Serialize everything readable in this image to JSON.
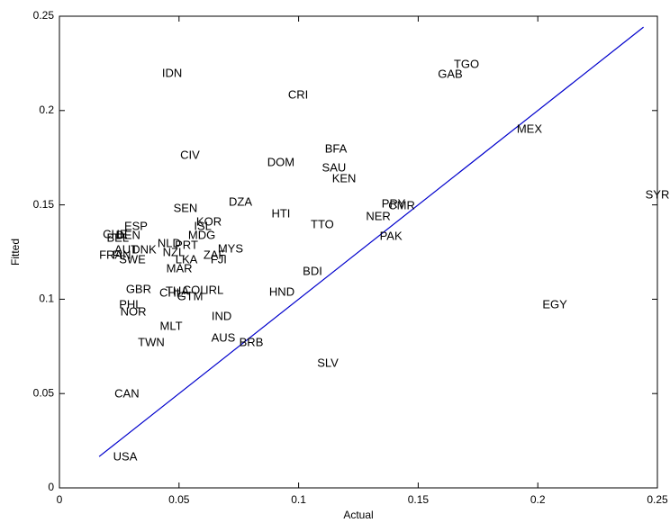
{
  "chart_data": {
    "type": "scatter",
    "x_label": "Actual",
    "y_label": "Fitted",
    "xlim": [
      0,
      0.25
    ],
    "ylim": [
      0,
      0.25
    ],
    "xticks": [
      0,
      0.05,
      0.1,
      0.15,
      0.2,
      0.25
    ],
    "yticks": [
      0,
      0.05,
      0.1,
      0.15,
      0.2,
      0.25
    ],
    "labels": [
      "IDN",
      "TGO",
      "GAB",
      "CRI",
      "MEX",
      "BFA",
      "CIV",
      "DOM",
      "SAU",
      "KEN",
      "SYR",
      "DZA",
      "SEN",
      "HTI",
      "PRY",
      "CMR",
      "NER",
      "TTO",
      "KOR",
      "ESP",
      "ISL",
      "CHE",
      "DEN",
      "BEL",
      "MDG",
      "PAK",
      "NLD",
      "PRT",
      "MYS",
      "AUT",
      "DNK",
      "FRA",
      "FIN",
      "NZL",
      "ZAF",
      "FJI",
      "LKA",
      "SWE",
      "MAR",
      "BDI",
      "GBR",
      "THA",
      "CHL",
      "COL",
      "IRL",
      "GTM",
      "HND",
      "EGY",
      "PHL",
      "NOR",
      "IND",
      "MLT",
      "AUS",
      "BRB",
      "TWN",
      "SLV",
      "CAN",
      "USA"
    ],
    "x": [
      0.0471,
      0.1702,
      0.1634,
      0.0998,
      0.1965,
      0.1156,
      0.0546,
      0.0926,
      0.1148,
      0.119,
      0.25,
      0.0757,
      0.0527,
      0.0926,
      0.1397,
      0.1431,
      0.1333,
      0.1099,
      0.0625,
      0.032,
      0.0599,
      0.0233,
      0.0287,
      0.0244,
      0.0595,
      0.1386,
      0.0459,
      0.0531,
      0.0715,
      0.0279,
      0.0354,
      0.0215,
      0.026,
      0.0478,
      0.0648,
      0.0666,
      0.0531,
      0.0305,
      0.0501,
      0.1058,
      0.0331,
      0.0493,
      0.0467,
      0.0565,
      0.0648,
      0.0546,
      0.093,
      0.2071,
      0.0297,
      0.0309,
      0.0678,
      0.0467,
      0.0685,
      0.0802,
      0.0384,
      0.1122,
      0.0282,
      0.0275
    ],
    "values": [
      0.2195,
      0.2242,
      0.219,
      0.208,
      0.1899,
      0.1794,
      0.176,
      0.1722,
      0.1694,
      0.1636,
      0.1551,
      0.1512,
      0.1479,
      0.145,
      0.1503,
      0.1493,
      0.1436,
      0.1393,
      0.1407,
      0.1384,
      0.1384,
      0.1341,
      0.1336,
      0.1322,
      0.1336,
      0.1331,
      0.1293,
      0.1283,
      0.1264,
      0.126,
      0.126,
      0.1231,
      0.1231,
      0.1245,
      0.1231,
      0.1207,
      0.1207,
      0.1207,
      0.1159,
      0.1145,
      0.105,
      0.104,
      0.1031,
      0.1045,
      0.1045,
      0.1011,
      0.1035,
      0.0969,
      0.0969,
      0.093,
      0.0906,
      0.0854,
      0.0792,
      0.0768,
      0.0768,
      0.0658,
      0.0496,
      0.0162
    ],
    "fit_line": {
      "color": "#0000cc",
      "x": [
        0.0166,
        0.2442
      ],
      "values": [
        0.0166,
        0.2442
      ]
    }
  }
}
